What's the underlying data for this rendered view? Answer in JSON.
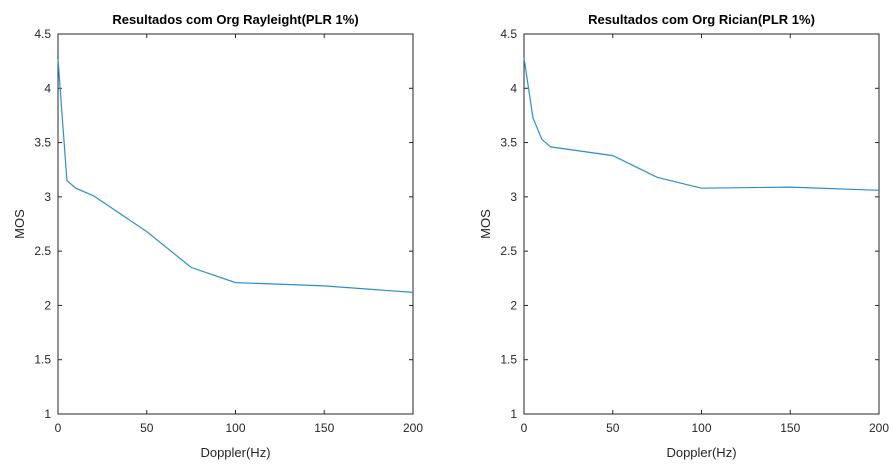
{
  "chart_data": [
    {
      "type": "line",
      "title": "Resultados com Org Rayleight(PLR 1%)",
      "xlabel": "Doppler(Hz)",
      "ylabel": "MOS",
      "xlim": [
        0,
        200
      ],
      "ylim": [
        1,
        4.5
      ],
      "xticks": [
        0,
        50,
        100,
        150,
        200
      ],
      "yticks": [
        1,
        1.5,
        2,
        2.5,
        3,
        3.5,
        4,
        4.5
      ],
      "grid": false,
      "color": "#2b8fcf",
      "series": [
        {
          "x": [
            0,
            5,
            10,
            20,
            50,
            75,
            100,
            150,
            200
          ],
          "values": [
            4.27,
            3.15,
            3.08,
            3.01,
            2.68,
            2.35,
            2.21,
            2.18,
            2.12
          ]
        }
      ]
    },
    {
      "type": "line",
      "title": "Resultados com Org Rician(PLR 1%)",
      "xlabel": "Doppler(Hz)",
      "ylabel": "MOS",
      "xlim": [
        0,
        200
      ],
      "ylim": [
        1,
        4.5
      ],
      "xticks": [
        0,
        50,
        100,
        150,
        200
      ],
      "yticks": [
        1,
        1.5,
        2,
        2.5,
        3,
        3.5,
        4,
        4.5
      ],
      "grid": false,
      "color": "#2b8fcf",
      "series": [
        {
          "x": [
            0,
            5,
            10,
            15,
            50,
            75,
            100,
            150,
            200
          ],
          "values": [
            4.28,
            3.73,
            3.53,
            3.46,
            3.38,
            3.18,
            3.08,
            3.09,
            3.06
          ]
        }
      ]
    }
  ]
}
